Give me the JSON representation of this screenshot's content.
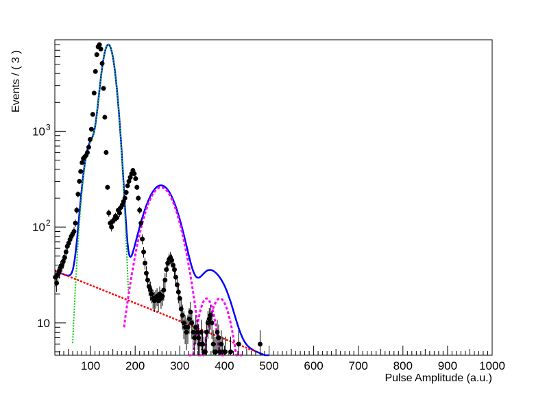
{
  "chart_data": {
    "type": "scatter",
    "xlabel": "Pulse Amplitude (a.u.)",
    "ylabel": "Events / ( 3 )",
    "xlim": [
      20,
      1000
    ],
    "ylim": [
      4.6,
      9000
    ],
    "yscale": "log",
    "x_ticks": [
      100,
      200,
      300,
      400,
      500,
      600,
      700,
      800,
      900,
      1000
    ],
    "y_ticks": [
      {
        "value": 10,
        "label": "10"
      },
      {
        "value": 100,
        "label": "10",
        "exp": "2"
      },
      {
        "value": 1000,
        "label": "10",
        "exp": "3"
      }
    ],
    "grid": false,
    "legend": "none",
    "colors": {
      "data": "#000000",
      "total_fit": "#0000ff",
      "peak_fit": "#00cc00",
      "background": "#ff0000",
      "secondary_peaks": "#ff00ff"
    },
    "data_points": [
      [
        21,
        30,
        6
      ],
      [
        24,
        26,
        5
      ],
      [
        27,
        32,
        6
      ],
      [
        30,
        35,
        6
      ],
      [
        33,
        38,
        6
      ],
      [
        36,
        40,
        6
      ],
      [
        39,
        44,
        7
      ],
      [
        42,
        48,
        7
      ],
      [
        45,
        55,
        7
      ],
      [
        48,
        63,
        8
      ],
      [
        51,
        68,
        8
      ],
      [
        54,
        74,
        9
      ],
      [
        57,
        80,
        9
      ],
      [
        60,
        85,
        9
      ],
      [
        63,
        90,
        10
      ],
      [
        66,
        110,
        10
      ],
      [
        69,
        150,
        12
      ],
      [
        72,
        220,
        15
      ],
      [
        75,
        300,
        17
      ],
      [
        78,
        380,
        20
      ],
      [
        81,
        470,
        22
      ],
      [
        84,
        520,
        23
      ],
      [
        87,
        540,
        23
      ],
      [
        90,
        560,
        24
      ],
      [
        93,
        600,
        25
      ],
      [
        96,
        680,
        26
      ],
      [
        99,
        820,
        29
      ],
      [
        102,
        1050,
        32
      ],
      [
        105,
        1500,
        39
      ],
      [
        108,
        2500,
        50
      ],
      [
        111,
        4200,
        65
      ],
      [
        114,
        6300,
        79
      ],
      [
        117,
        7600,
        87
      ],
      [
        120,
        8000,
        89
      ],
      [
        123,
        7200,
        85
      ],
      [
        126,
        5100,
        71
      ],
      [
        129,
        2800,
        53
      ],
      [
        132,
        1400,
        37
      ],
      [
        135,
        600,
        24
      ],
      [
        138,
        260,
        16
      ],
      [
        141,
        140,
        12
      ],
      [
        144,
        110,
        11
      ],
      [
        147,
        100,
        10
      ],
      [
        150,
        115,
        11
      ],
      [
        153,
        120,
        11
      ],
      [
        156,
        130,
        11
      ],
      [
        159,
        125,
        11
      ],
      [
        162,
        150,
        12
      ],
      [
        165,
        140,
        12
      ],
      [
        168,
        160,
        13
      ],
      [
        171,
        170,
        13
      ],
      [
        174,
        185,
        14
      ],
      [
        177,
        200,
        14
      ],
      [
        180,
        230,
        15
      ],
      [
        183,
        270,
        16
      ],
      [
        186,
        300,
        17
      ],
      [
        189,
        330,
        18
      ],
      [
        192,
        360,
        19
      ],
      [
        195,
        390,
        20
      ],
      [
        198,
        360,
        19
      ],
      [
        201,
        320,
        18
      ],
      [
        204,
        260,
        16
      ],
      [
        207,
        200,
        14
      ],
      [
        210,
        150,
        12
      ],
      [
        213,
        110,
        10
      ],
      [
        216,
        75,
        9
      ],
      [
        219,
        55,
        7
      ],
      [
        222,
        42,
        6
      ],
      [
        225,
        33,
        6
      ],
      [
        228,
        28,
        5
      ],
      [
        231,
        24,
        5
      ],
      [
        234,
        22,
        5
      ],
      [
        237,
        20,
        4
      ],
      [
        240,
        18,
        4
      ],
      [
        243,
        17,
        4
      ],
      [
        246,
        18,
        4
      ],
      [
        249,
        19,
        4
      ],
      [
        252,
        17,
        4
      ],
      [
        255,
        20,
        4
      ],
      [
        258,
        18,
        4
      ],
      [
        261,
        19,
        4
      ],
      [
        264,
        22,
        5
      ],
      [
        267,
        28,
        5
      ],
      [
        270,
        36,
        6
      ],
      [
        273,
        42,
        6
      ],
      [
        276,
        46,
        7
      ],
      [
        279,
        48,
        7
      ],
      [
        282,
        45,
        7
      ],
      [
        285,
        40,
        6
      ],
      [
        288,
        36,
        6
      ],
      [
        291,
        30,
        5
      ],
      [
        294,
        25,
        5
      ],
      [
        297,
        21,
        5
      ],
      [
        300,
        18,
        4
      ],
      [
        303,
        14,
        4
      ],
      [
        306,
        12,
        3.5
      ],
      [
        309,
        10,
        3.2
      ],
      [
        312,
        9,
        3
      ],
      [
        315,
        8,
        2.8
      ],
      [
        318,
        9,
        3
      ],
      [
        321,
        11,
        3.3
      ],
      [
        324,
        13,
        3.6
      ],
      [
        327,
        10,
        3.2
      ],
      [
        330,
        8,
        2.8
      ],
      [
        333,
        7,
        2.6
      ],
      [
        336,
        9,
        3
      ],
      [
        339,
        8,
        2.8
      ],
      [
        342,
        7,
        2.6
      ],
      [
        345,
        6,
        2.4
      ],
      [
        348,
        8,
        2.8
      ],
      [
        351,
        6,
        2.4
      ],
      [
        354,
        5,
        2.2
      ],
      [
        357,
        5,
        2.2
      ],
      [
        360,
        8,
        2.8
      ],
      [
        363,
        10,
        3.2
      ],
      [
        366,
        11,
        3.3
      ],
      [
        369,
        12,
        3.5
      ],
      [
        372,
        10,
        3.2
      ],
      [
        375,
        6,
        2.4
      ],
      [
        378,
        5,
        2.2
      ],
      [
        381,
        5,
        2.2
      ],
      [
        384,
        8,
        2.8
      ],
      [
        387,
        7,
        2.6
      ],
      [
        390,
        5,
        2.2
      ],
      [
        393,
        6,
        2.4
      ],
      [
        396,
        5,
        2.2
      ],
      [
        402,
        5,
        2.2
      ],
      [
        414,
        5,
        2.2
      ],
      [
        432,
        6,
        2.4
      ],
      [
        480,
        6,
        2.4
      ]
    ]
  }
}
